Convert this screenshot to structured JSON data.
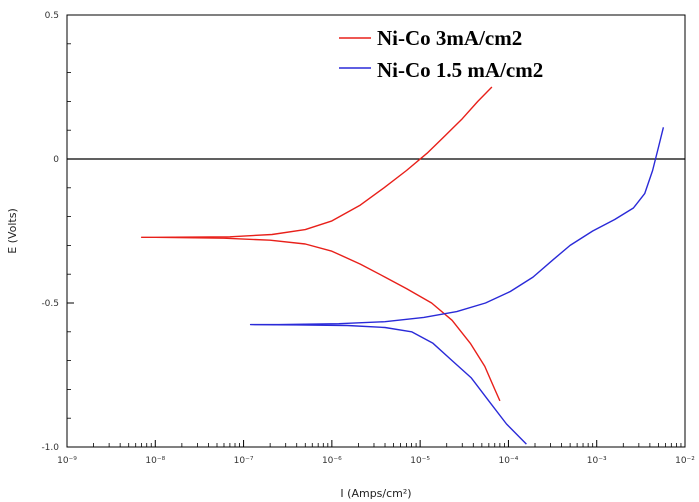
{
  "chart_data": {
    "type": "line",
    "title": "",
    "xlabel": "I (Amps/cm²)",
    "ylabel": "E (Volts)",
    "x_scale": "log",
    "xlim": [
      1e-09,
      0.01
    ],
    "ylim": [
      -1.0,
      0.5
    ],
    "x_ticks": [
      "10⁻⁹",
      "10⁻⁸",
      "10⁻⁷",
      "10⁻⁶",
      "10⁻⁵",
      "10⁻⁴",
      "10⁻³",
      "10⁻²"
    ],
    "y_ticks": [
      "-1.0",
      "-0.5",
      "0",
      "0.5"
    ],
    "grid": false,
    "legend_position": "top-right",
    "series": [
      {
        "name": "Ni-Co 3mA/cm2",
        "color": "#e8201a",
        "points": [
          [
            6.5e-05,
            0.25
          ],
          [
            4.5e-05,
            0.2
          ],
          [
            3e-05,
            0.14
          ],
          [
            1.9e-05,
            0.08
          ],
          [
            1.2e-05,
            0.02
          ],
          [
            7e-06,
            -0.04
          ],
          [
            3.9e-06,
            -0.1
          ],
          [
            2.1e-06,
            -0.16
          ],
          [
            1e-06,
            -0.215
          ],
          [
            5e-07,
            -0.245
          ],
          [
            2.1e-07,
            -0.262
          ],
          [
            7e-08,
            -0.27
          ],
          [
            1e-08,
            -0.272
          ],
          [
            7e-09,
            -0.272
          ],
          [
            1e-08,
            -0.272
          ],
          [
            6e-08,
            -0.275
          ],
          [
            2e-07,
            -0.282
          ],
          [
            5e-07,
            -0.295
          ],
          [
            1e-06,
            -0.32
          ],
          [
            2.1e-06,
            -0.365
          ],
          [
            4e-06,
            -0.41
          ],
          [
            7e-06,
            -0.45
          ],
          [
            1.35e-05,
            -0.5
          ],
          [
            2.3e-05,
            -0.56
          ],
          [
            3.7e-05,
            -0.64
          ],
          [
            5.4e-05,
            -0.72
          ],
          [
            7e-05,
            -0.8
          ],
          [
            8e-05,
            -0.84
          ]
        ]
      },
      {
        "name": "Ni-Co 1.5 mA/cm2",
        "color": "#2a2ad8",
        "points": [
          [
            0.0057,
            0.11
          ],
          [
            0.005,
            0.04
          ],
          [
            0.0043,
            -0.04
          ],
          [
            0.0035,
            -0.12
          ],
          [
            0.0026,
            -0.17
          ],
          [
            0.0016,
            -0.21
          ],
          [
            0.0009,
            -0.25
          ],
          [
            0.0005,
            -0.3
          ],
          [
            0.00032,
            -0.35
          ],
          [
            0.00019,
            -0.41
          ],
          [
            0.000105,
            -0.46
          ],
          [
            5.5e-05,
            -0.5
          ],
          [
            2.6e-05,
            -0.53
          ],
          [
            1.1e-05,
            -0.55
          ],
          [
            4e-06,
            -0.565
          ],
          [
            1.2e-06,
            -0.572
          ],
          [
            2.5e-07,
            -0.575
          ],
          [
            1.2e-07,
            -0.575
          ],
          [
            4e-07,
            -0.576
          ],
          [
            1.5e-06,
            -0.578
          ],
          [
            4e-06,
            -0.585
          ],
          [
            8e-06,
            -0.6
          ],
          [
            1.4e-05,
            -0.64
          ],
          [
            2.3e-05,
            -0.7
          ],
          [
            3.8e-05,
            -0.76
          ],
          [
            6e-05,
            -0.84
          ],
          [
            9.5e-05,
            -0.92
          ],
          [
            0.00016,
            -0.99
          ]
        ]
      }
    ]
  }
}
